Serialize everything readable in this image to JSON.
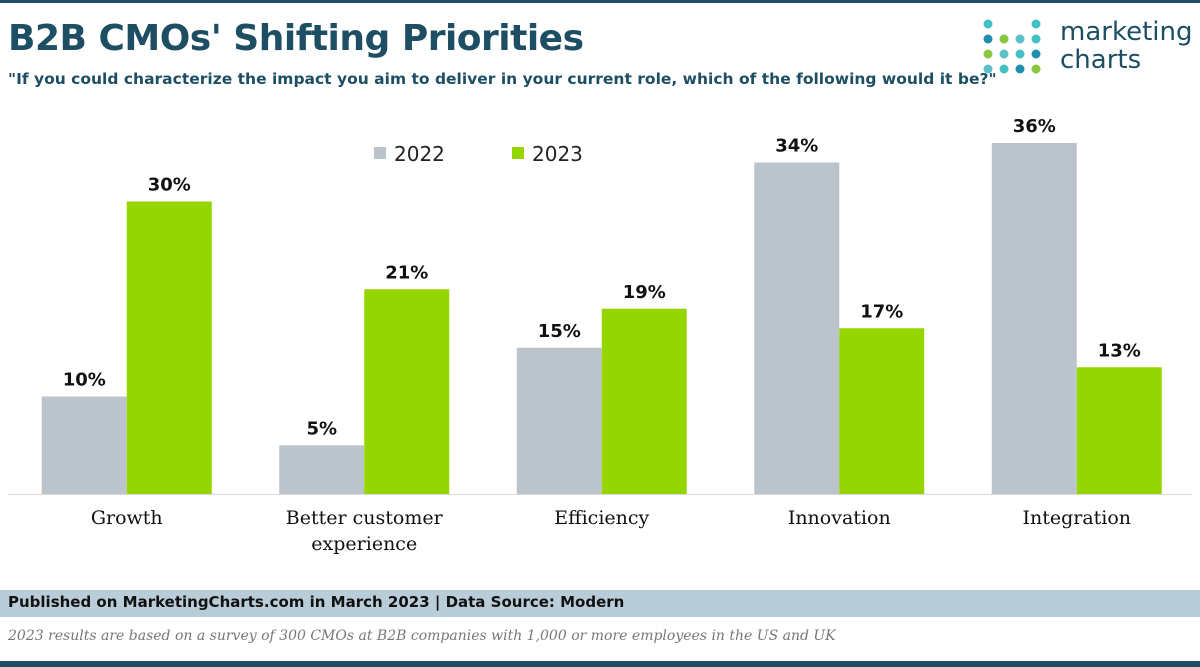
{
  "header": {
    "title": "B2B CMOs' Shifting Priorities",
    "subtitle": "\"If you could characterize the impact you aim to deliver in your current role, which of the following would it be?\""
  },
  "logo": {
    "line1": "marketing",
    "line2": "charts"
  },
  "footer": {
    "published": "Published on MarketingCharts.com in March 2023 | Data Source: Modern",
    "note": "2023 results are based on a survey of 300 CMOs at B2B companies with 1,000 or more employees in the US and UK"
  },
  "colors": {
    "series_2022": "#bcc4cb",
    "series_2023": "#95d600",
    "brand": "#1d4e63"
  },
  "chart_data": {
    "type": "bar",
    "title": "B2B CMOs' Shifting Priorities",
    "categories": [
      [
        "Growth"
      ],
      [
        "Better customer",
        "experience"
      ],
      [
        "Efficiency"
      ],
      [
        "Innovation"
      ],
      [
        "Integration"
      ]
    ],
    "series": [
      {
        "name": "2022",
        "values": [
          10,
          5,
          15,
          34,
          36
        ],
        "labels": [
          "10%",
          "5%",
          "15%",
          "34%",
          "36%"
        ]
      },
      {
        "name": "2023",
        "values": [
          30,
          21,
          19,
          17,
          13
        ],
        "labels": [
          "30%",
          "21%",
          "19%",
          "17%",
          "13%"
        ]
      }
    ],
    "xlabel": "",
    "ylabel": "",
    "ylim": [
      0,
      36
    ],
    "grid": false,
    "legend": "top-center"
  }
}
